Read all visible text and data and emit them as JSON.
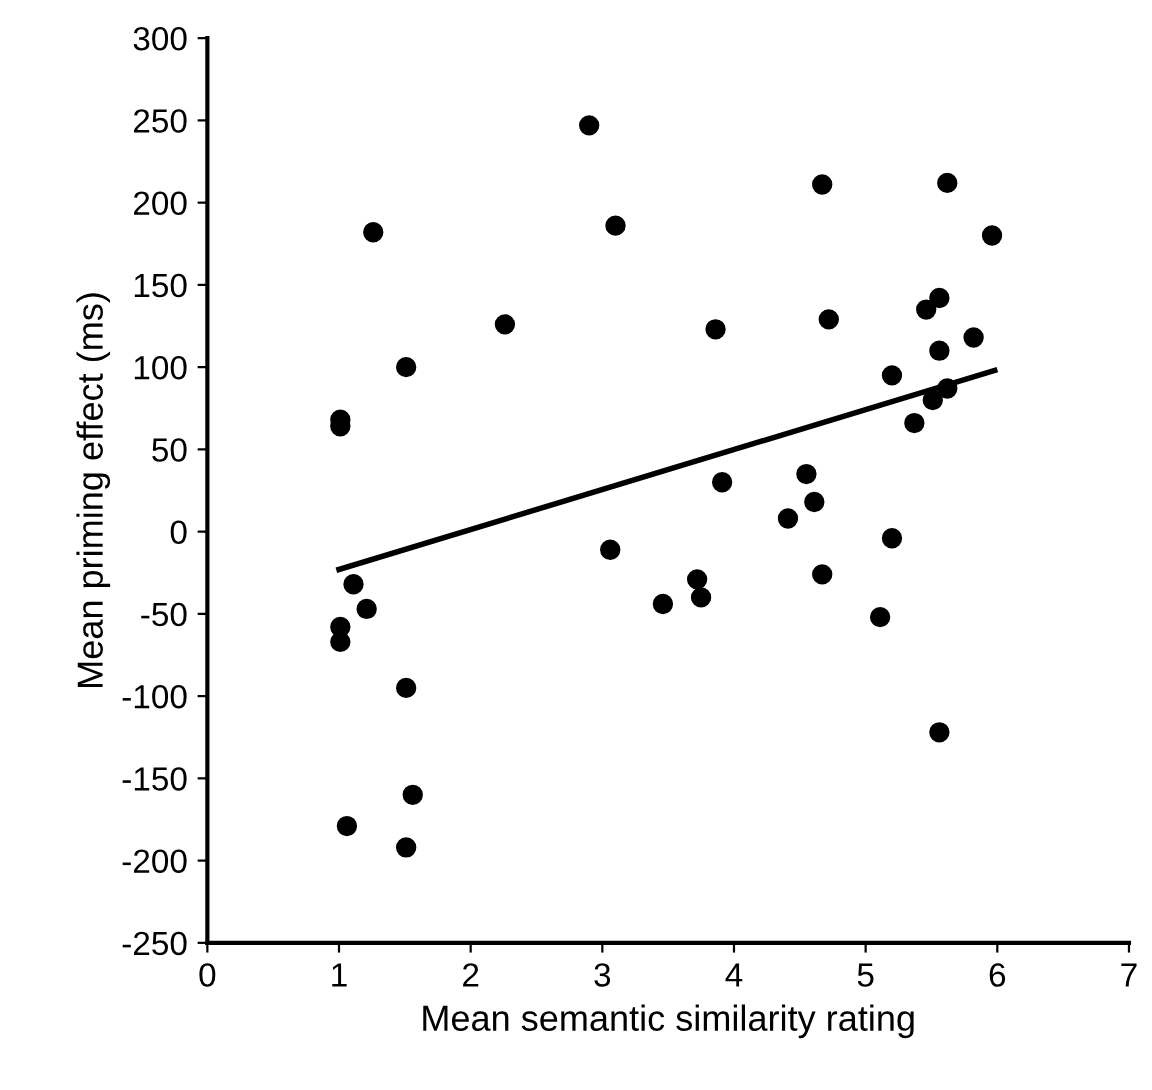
{
  "chart_data": {
    "type": "scatter",
    "xlabel": "Mean semantic similarity rating",
    "ylabel": "Mean priming effect (ms)",
    "xlim": [
      0,
      7
    ],
    "xticks": [
      0,
      1,
      2,
      3,
      4,
      5,
      6,
      7
    ],
    "ylim": [
      -250,
      300
    ],
    "yticks": [
      -250,
      -200,
      -150,
      -100,
      -50,
      0,
      50,
      100,
      150,
      200,
      250,
      300
    ],
    "grid": false,
    "legend": false,
    "marker": "circle",
    "series": [
      {
        "color": "#000000",
        "x": [
          1.01,
          1.01,
          1.11,
          1.21,
          1.01,
          1.01,
          1.26,
          1.51,
          1.51,
          1.06,
          1.56,
          1.51,
          2.26,
          2.9,
          3.1,
          3.06,
          3.46,
          3.72,
          3.75,
          3.86,
          3.91,
          4.41,
          4.55,
          4.61,
          4.67,
          4.67,
          4.72,
          5.11,
          5.2,
          5.2,
          5.37,
          5.46,
          5.51,
          5.56,
          5.56,
          5.56,
          5.62,
          5.62,
          5.82,
          5.96
        ],
        "values": [
          68,
          64,
          -32,
          -47,
          -58,
          -67,
          182,
          100,
          -95,
          -179,
          -160,
          -192,
          126,
          247,
          186,
          -11,
          -44,
          -29,
          -40,
          123,
          30,
          8,
          35,
          18,
          211,
          -26,
          129,
          -52,
          95,
          -4,
          66,
          135,
          80,
          142,
          110,
          -122,
          87,
          212,
          118,
          180
        ]
      },
      {
        "type": "line",
        "color": "#000000",
        "x": [
          1.0,
          5.98
        ],
        "values": [
          -23,
          98
        ],
        "marker": "none",
        "line_style": "solid"
      }
    ]
  }
}
